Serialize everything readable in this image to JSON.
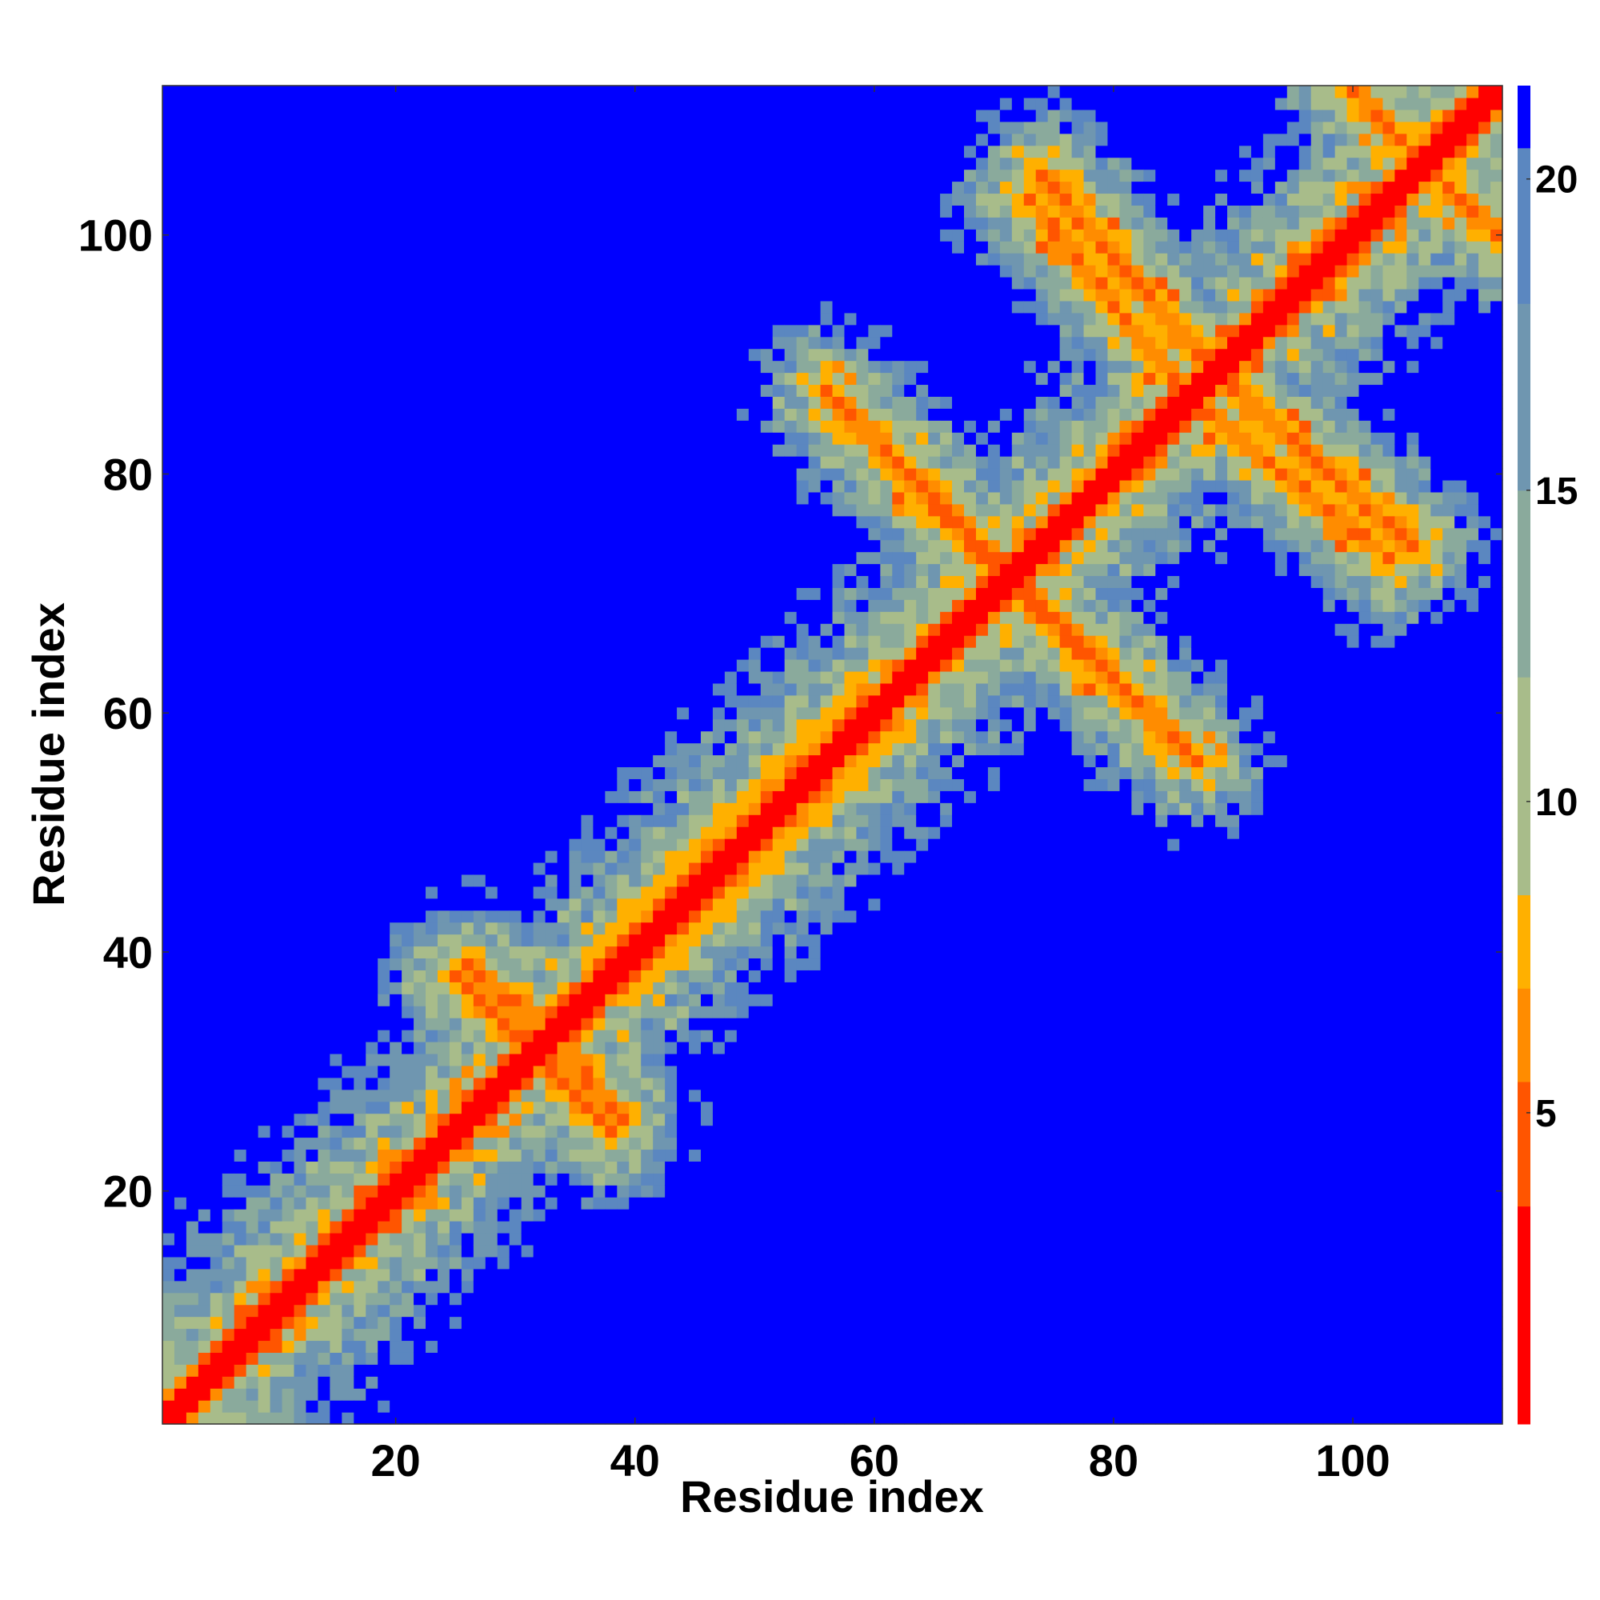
{
  "chart_data": {
    "type": "heatmap",
    "title": "",
    "xlabel": "Residue index",
    "ylabel": "Residue index",
    "n_residues": 112,
    "xlim": [
      0.5,
      112.5
    ],
    "ylim": [
      0.5,
      112.5
    ],
    "x_ticks": [
      20,
      40,
      60,
      80,
      100
    ],
    "y_ticks": [
      20,
      40,
      60,
      80,
      100
    ],
    "colorbar": {
      "ticks": [
        5,
        10,
        15,
        20
      ],
      "range": [
        0,
        21.5
      ],
      "colors": [
        "#ff0000",
        "#ff5500",
        "#ff8c00",
        "#ffb000",
        "#a8bc8a",
        "#8aaa9c",
        "#6f96b0",
        "#5b87c0",
        "#0000ff"
      ],
      "boundaries": [
        0,
        3.5,
        5.5,
        7,
        8.5,
        12,
        15,
        18,
        20.5,
        21.5
      ]
    },
    "secondary_structure_contacts": {
      "diagonal_band_width": 3,
      "helix_segment": [
        36,
        62
      ],
      "antiparallel_pairs": [
        {
          "i": [
            57,
            75
          ],
          "j": [
            86,
            68
          ]
        },
        {
          "i": [
            73,
            87
          ],
          "j": [
            69,
            56
          ]
        },
        {
          "i": [
            88,
            103
          ],
          "j": [
            85,
            73
          ]
        },
        {
          "i": [
            74,
            88
          ],
          "j": [
            105,
            89
          ]
        },
        {
          "i": [
            100,
            108
          ],
          "j": [
            112,
            104
          ]
        },
        {
          "i": [
            26,
            36
          ],
          "j": [
            39,
            30
          ]
        },
        {
          "i": [
            32,
            38
          ],
          "j": [
            31,
            25
          ]
        }
      ]
    },
    "grid": false,
    "legend": "none"
  }
}
